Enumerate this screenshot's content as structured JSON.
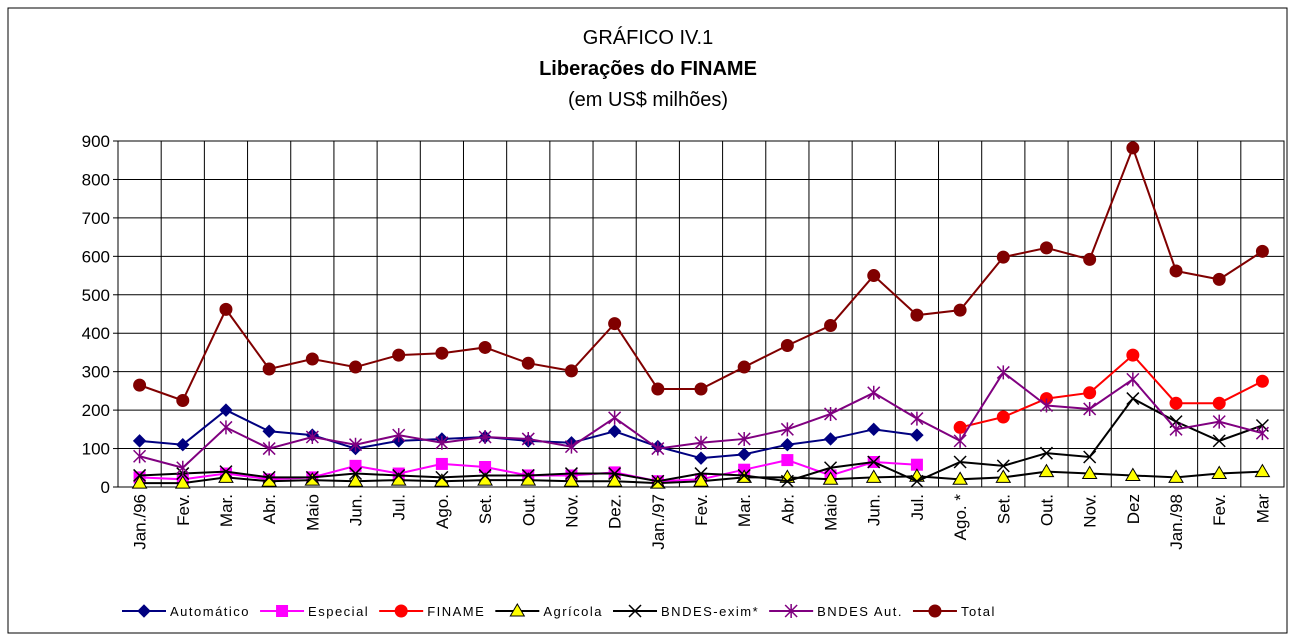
{
  "chart_data": {
    "type": "line",
    "title": "GRÁFICO IV.1",
    "subtitle": "Liberações do FINAME",
    "unit_note": "(em US$ milhões)",
    "categories": [
      "Jan./96",
      "Fev.",
      "Mar.",
      "Abr.",
      "Maio",
      "Jun.",
      "Jul.",
      "Ago.",
      "Set.",
      "Out.",
      "Nov.",
      "Dez.",
      "Jan./97",
      "Fev.",
      "Mar.",
      "Abr.",
      "Maio",
      "Jun.",
      "Jul.",
      "Ago. *",
      "Set.",
      "Out.",
      "Nov.",
      "Dez",
      "Jan./98",
      "Fev.",
      "Mar"
    ],
    "ylim": [
      0,
      900
    ],
    "yticks": [
      0,
      100,
      200,
      300,
      400,
      500,
      600,
      700,
      800,
      900
    ],
    "grid": true,
    "legend": "bottom",
    "series": [
      {
        "name": "Automático",
        "color": "#000080",
        "marker": "diamond",
        "marker_fill": "#000080",
        "values": [
          120,
          110,
          200,
          145,
          135,
          100,
          120,
          125,
          130,
          120,
          115,
          145,
          105,
          75,
          85,
          110,
          125,
          150,
          135,
          null,
          null,
          null,
          null,
          null,
          null,
          null,
          null
        ]
      },
      {
        "name": "Especial",
        "color": "#ff00ff",
        "marker": "square",
        "marker_fill": "#ff00ff",
        "values": [
          25,
          20,
          35,
          20,
          25,
          55,
          35,
          60,
          52,
          30,
          30,
          38,
          15,
          20,
          45,
          70,
          30,
          65,
          58,
          null,
          null,
          null,
          null,
          null,
          null,
          null,
          null
        ]
      },
      {
        "name": "FINAME",
        "color": "#ff0000",
        "marker": "circle",
        "marker_fill": "#ff0000",
        "values": [
          null,
          null,
          null,
          null,
          null,
          null,
          null,
          null,
          null,
          null,
          null,
          null,
          null,
          null,
          null,
          null,
          null,
          null,
          null,
          155,
          182,
          230,
          245,
          343,
          218,
          218,
          275
        ]
      },
      {
        "name": "Agrícola",
        "color": "#000000",
        "marker": "triangle",
        "marker_fill": "#ffff00",
        "values": [
          10,
          10,
          25,
          15,
          18,
          15,
          18,
          15,
          18,
          18,
          15,
          15,
          10,
          15,
          25,
          25,
          20,
          25,
          28,
          20,
          25,
          40,
          35,
          30,
          25,
          35,
          40
        ]
      },
      {
        "name": "BNDES-exim*",
        "color": "#000000",
        "marker": "x",
        "marker_fill": "#000000",
        "values": [
          30,
          35,
          40,
          25,
          25,
          35,
          30,
          25,
          30,
          30,
          35,
          35,
          15,
          35,
          30,
          15,
          50,
          65,
          15,
          65,
          55,
          88,
          78,
          230,
          170,
          120,
          160
        ]
      },
      {
        "name": "BNDES Aut.",
        "color": "#800080",
        "marker": "star",
        "marker_fill": "#800080",
        "values": [
          80,
          50,
          155,
          100,
          130,
          110,
          135,
          115,
          130,
          125,
          105,
          180,
          100,
          115,
          125,
          150,
          190,
          245,
          178,
          120,
          298,
          212,
          203,
          280,
          150,
          170,
          140
        ]
      },
      {
        "name": "Total",
        "color": "#800000",
        "marker": "circle",
        "marker_fill": "#800000",
        "values": [
          265,
          225,
          462,
          307,
          333,
          312,
          343,
          348,
          363,
          322,
          302,
          425,
          255,
          255,
          312,
          368,
          420,
          550,
          447,
          460,
          598,
          622,
          592,
          882,
          562,
          540,
          613
        ]
      }
    ]
  }
}
